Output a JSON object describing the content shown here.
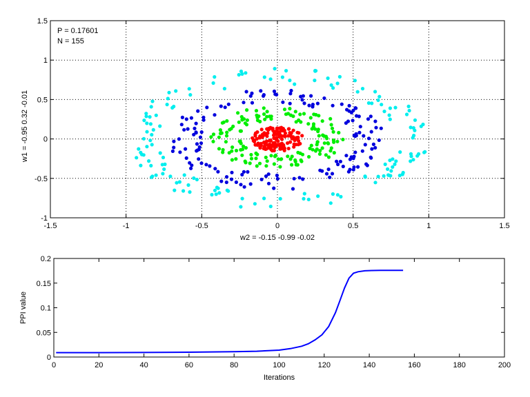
{
  "chart_data": [
    {
      "type": "scatter",
      "title": "",
      "xlabel": "w2 = -0.15  -0.99  -0.02",
      "ylabel": "w1 = -0.95  0.32  -0.01",
      "xlim": [
        -1.5,
        1.5
      ],
      "ylim": [
        -1,
        1.5
      ],
      "xticks": [
        "-1.5",
        "-1",
        "-0.5",
        "0",
        "0.5",
        "1",
        "1.5"
      ],
      "yticks": [
        "-1",
        "-0.5",
        "0",
        "0.5",
        "1",
        "1.5"
      ],
      "grid": true,
      "annotations": [
        "P = 0.17601",
        "N = 155"
      ],
      "series": [
        {
          "color": "#ff0000",
          "shape": "disk",
          "center": [
            0.0,
            0.0
          ],
          "radius": [
            0.0,
            0.17
          ],
          "count": 150
        },
        {
          "color": "#00ee00",
          "shape": "ring",
          "center": [
            0.0,
            0.02
          ],
          "radius": [
            0.25,
            0.44
          ],
          "count": 150
        },
        {
          "color": "#0000dd",
          "shape": "ring",
          "center": [
            0.0,
            0.0
          ],
          "radius": [
            0.5,
            0.72
          ],
          "count": 150
        },
        {
          "color": "#00eeee",
          "shape": "ring",
          "center": [
            0.0,
            0.0
          ],
          "radius": [
            0.78,
            1.0
          ],
          "count": 150
        }
      ]
    },
    {
      "type": "line",
      "title": "",
      "xlabel": "Iterations",
      "ylabel": "PPI value",
      "xlim": [
        0,
        200
      ],
      "ylim": [
        0,
        0.2
      ],
      "xticks": [
        "0",
        "20",
        "40",
        "60",
        "80",
        "100",
        "120",
        "140",
        "160",
        "180",
        "200"
      ],
      "yticks": [
        "0",
        "0.05",
        "0.1",
        "0.15",
        "0.2"
      ],
      "grid": false,
      "series": [
        {
          "color": "#0000ff",
          "x": [
            1,
            20,
            40,
            60,
            80,
            90,
            100,
            105,
            110,
            113,
            116,
            119,
            122,
            125,
            127,
            129,
            131,
            133,
            135,
            138,
            141,
            145,
            150,
            155
          ],
          "y": [
            0.009,
            0.009,
            0.0092,
            0.0098,
            0.0108,
            0.0118,
            0.014,
            0.017,
            0.022,
            0.027,
            0.035,
            0.045,
            0.062,
            0.09,
            0.115,
            0.14,
            0.16,
            0.17,
            0.173,
            0.175,
            0.1755,
            0.176,
            0.176,
            0.17601
          ]
        }
      ]
    }
  ]
}
